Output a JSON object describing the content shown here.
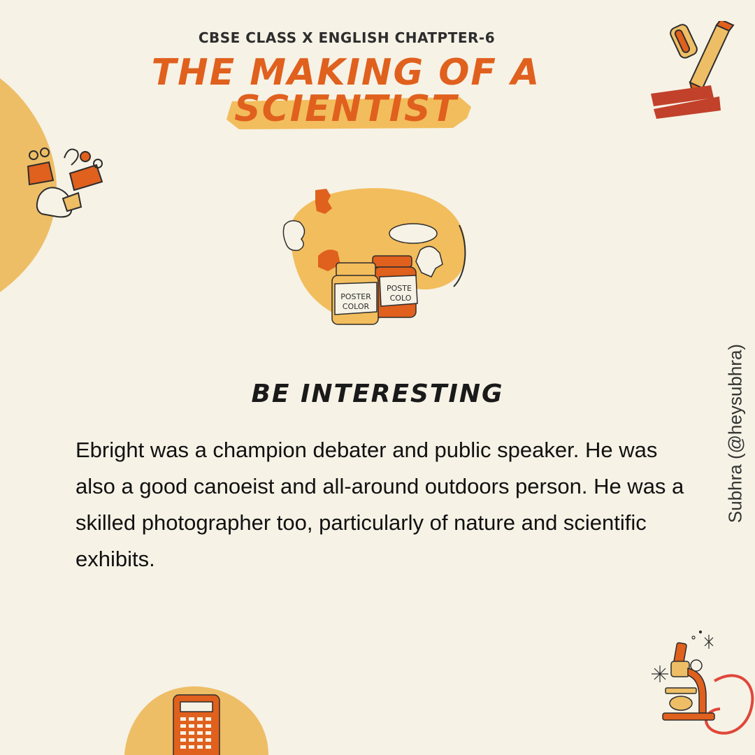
{
  "header": {
    "subtitle": "CBSE CLASS X ENGLISH CHATPTER-6",
    "title_line1": "THE MAKING OF A",
    "title_line2": "SCIENTIST"
  },
  "illustration": {
    "jar1_label_line1": "POSTER",
    "jar1_label_line2": "COLOR",
    "jar2_label_line1": "POSTE",
    "jar2_label_line2": "COLO"
  },
  "section": {
    "heading": "BE INTERESTING",
    "body": "Ebright was a champion debater and public speaker. He was also a good canoeist and all-around outdoors person. He was a skilled photographer too, particularly of nature and scientific exhibits."
  },
  "credit": "Subhra (@heysubhra)",
  "colors": {
    "background": "#f6f2e6",
    "accent_orange": "#e0601d",
    "accent_yellow": "#f2bd5c",
    "accent_red": "#c2412a"
  }
}
